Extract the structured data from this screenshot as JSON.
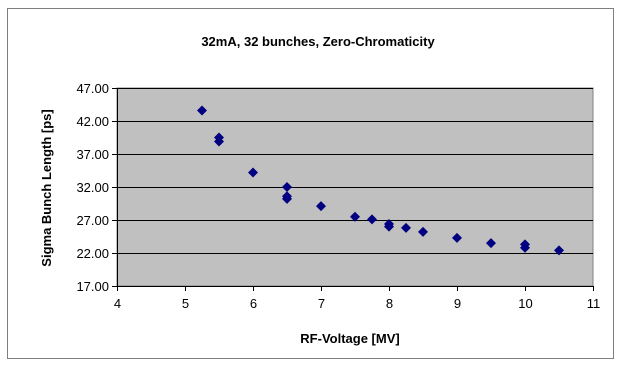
{
  "chart_data": {
    "type": "scatter",
    "title": "32mA, 32 bunches, Zero-Chromaticity",
    "xlabel": "RF-Voltage [MV]",
    "ylabel": "Sigma Bunch Length [ps]",
    "xlim": [
      4,
      11
    ],
    "ylim": [
      17,
      47
    ],
    "xticks": [
      4,
      5,
      6,
      7,
      8,
      9,
      10,
      11
    ],
    "yticks": [
      17,
      22,
      27,
      32,
      37,
      42,
      47
    ],
    "xtick_labels": [
      "4",
      "5",
      "6",
      "7",
      "8",
      "9",
      "10",
      "11"
    ],
    "ytick_labels": [
      "17.00",
      "22.00",
      "27.00",
      "32.00",
      "37.00",
      "42.00",
      "47.00"
    ],
    "grid": "horizontal",
    "plot_background": "#c0c0c0",
    "marker_color": "#000080",
    "marker": "diamond",
    "points": [
      {
        "x": 5.25,
        "y": 43.6
      },
      {
        "x": 5.5,
        "y": 39.5
      },
      {
        "x": 5.5,
        "y": 38.9
      },
      {
        "x": 6.0,
        "y": 34.2
      },
      {
        "x": 6.5,
        "y": 32.0
      },
      {
        "x": 6.5,
        "y": 30.6
      },
      {
        "x": 6.5,
        "y": 30.2
      },
      {
        "x": 7.0,
        "y": 29.1
      },
      {
        "x": 7.5,
        "y": 27.5
      },
      {
        "x": 7.75,
        "y": 27.1
      },
      {
        "x": 8.0,
        "y": 26.4
      },
      {
        "x": 8.0,
        "y": 26.0
      },
      {
        "x": 8.25,
        "y": 25.8
      },
      {
        "x": 8.5,
        "y": 25.2
      },
      {
        "x": 9.0,
        "y": 24.3
      },
      {
        "x": 9.5,
        "y": 23.5
      },
      {
        "x": 10.0,
        "y": 23.3
      },
      {
        "x": 10.0,
        "y": 22.8
      },
      {
        "x": 10.5,
        "y": 22.4
      }
    ]
  }
}
